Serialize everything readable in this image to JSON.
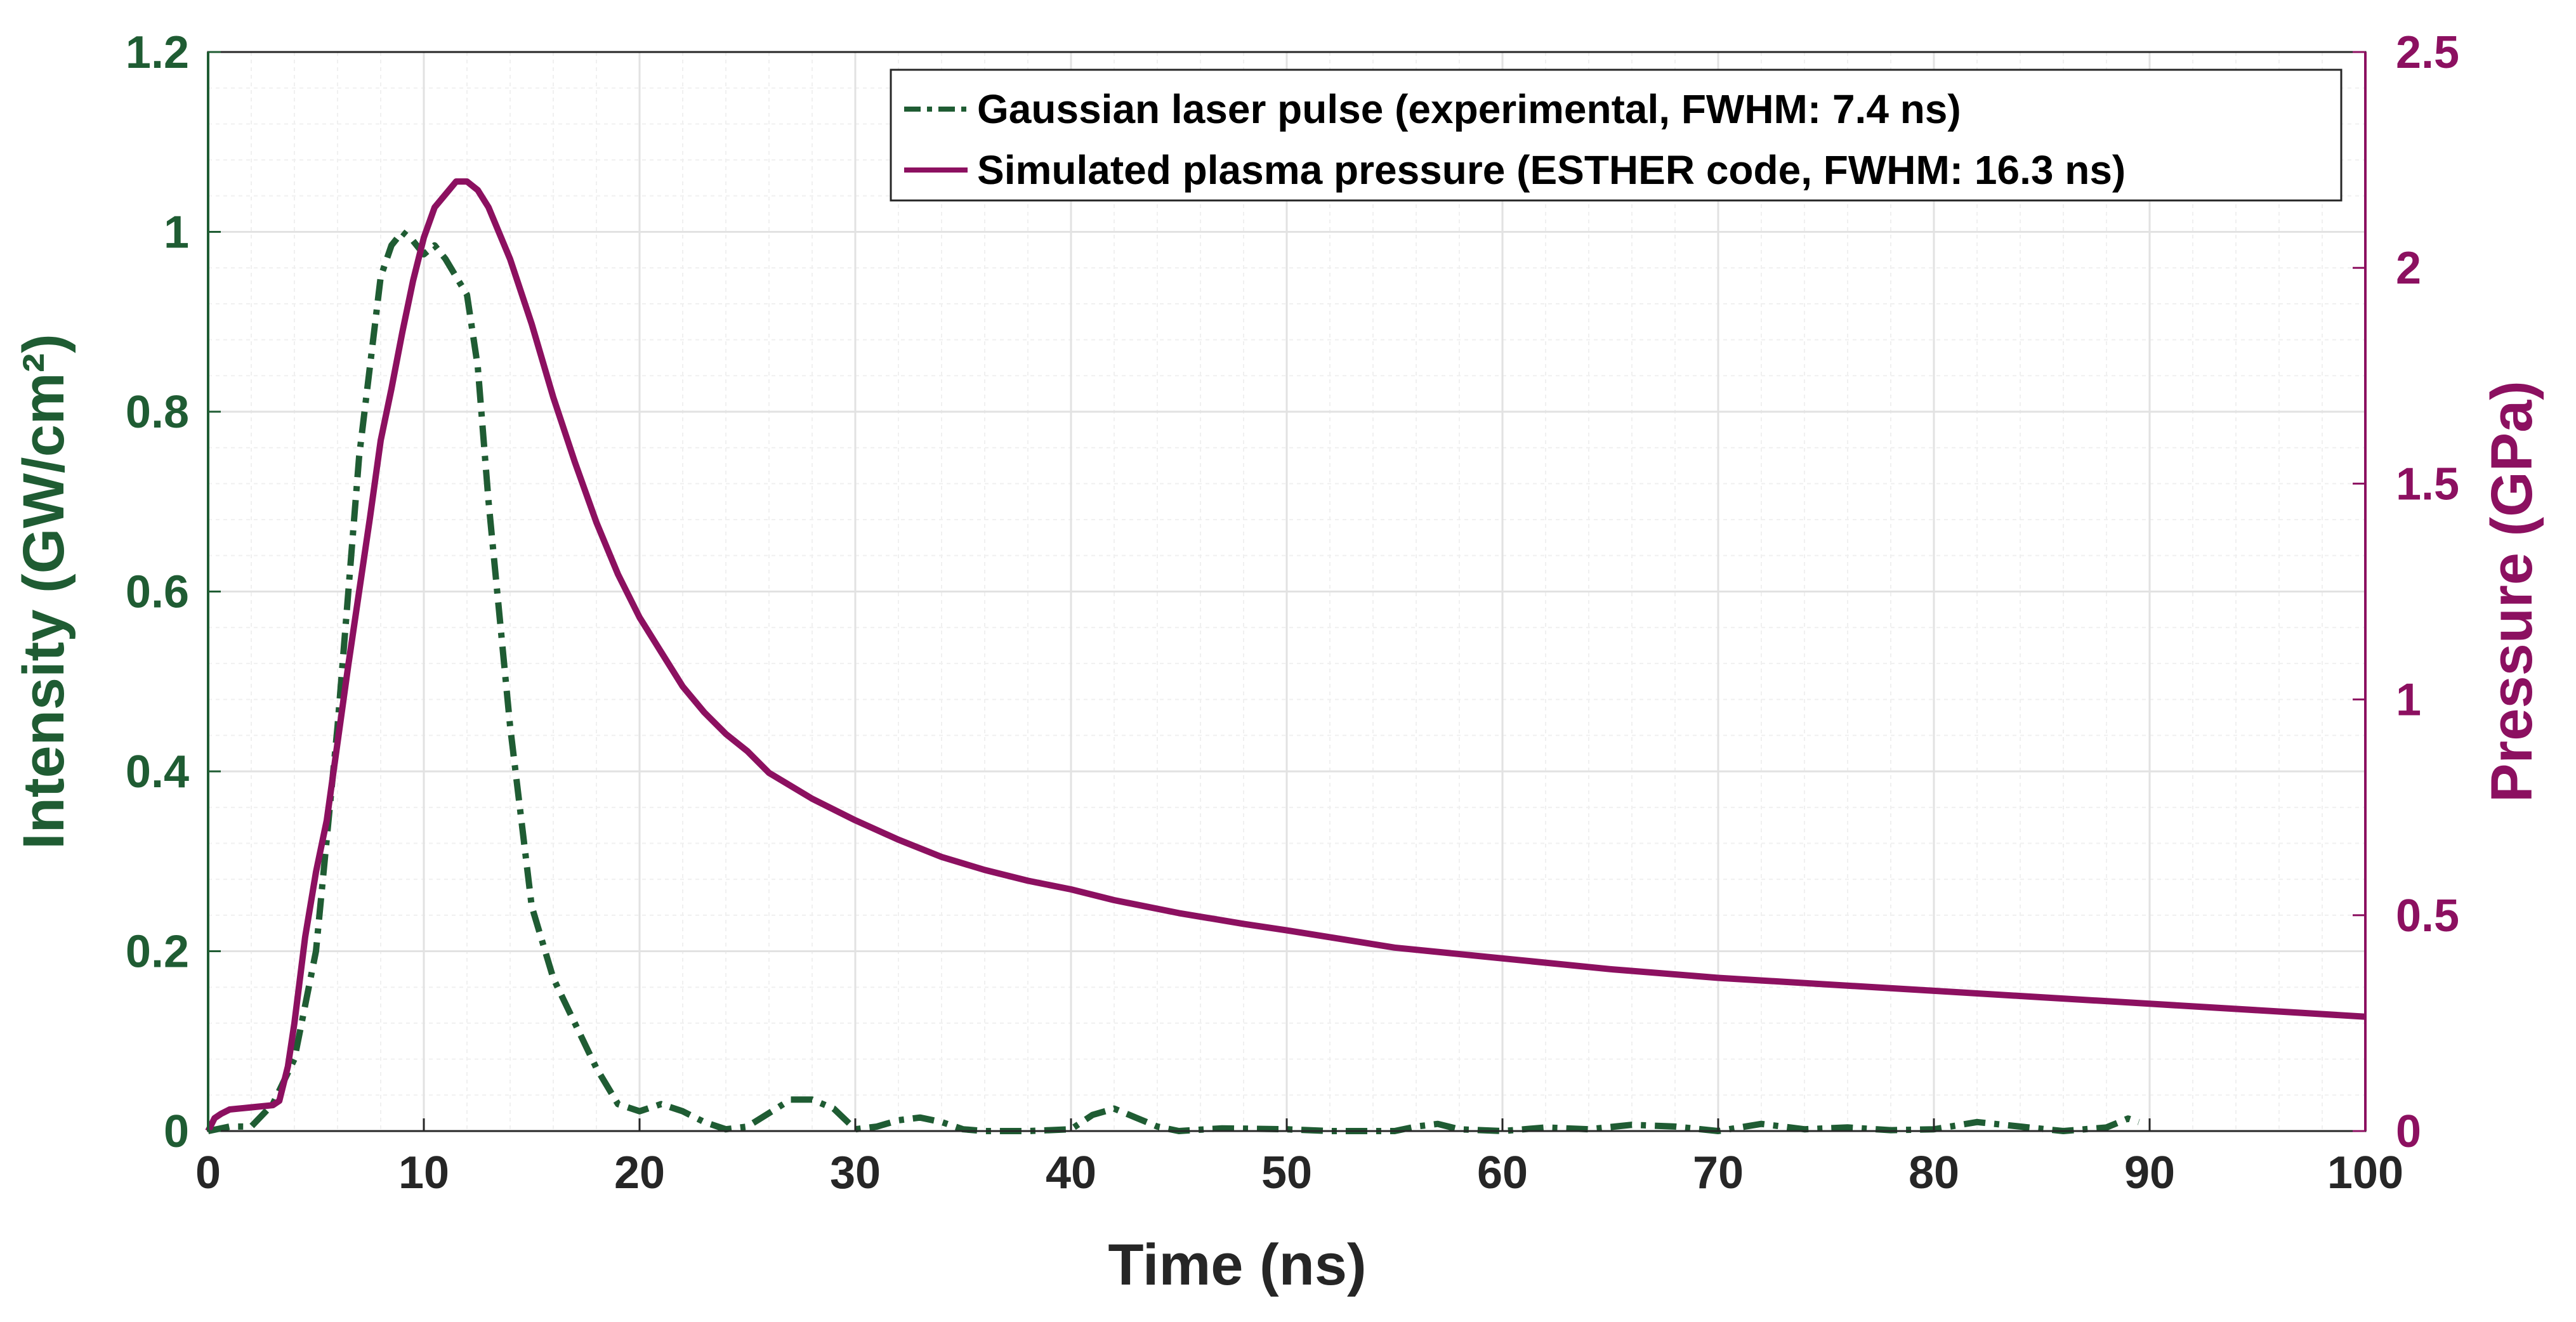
{
  "chart_data": {
    "type": "line",
    "title": "",
    "xlabel": "Time (ns)",
    "ylabel_left": "Intensity (GW/cm²)",
    "ylabel_right": "Pressure (GPa)",
    "xlim": [
      0,
      100
    ],
    "ylim_left": [
      0,
      1.2
    ],
    "ylim_right": [
      0,
      2.5
    ],
    "x_ticks": [
      "0",
      "10",
      "20",
      "30",
      "40",
      "50",
      "60",
      "70",
      "80",
      "90",
      "100"
    ],
    "y_left_ticks": [
      "0",
      "0.2",
      "0.4",
      "0.6",
      "0.8",
      "1",
      "1.2"
    ],
    "y_right_ticks": [
      "0",
      "0.5",
      "1",
      "1.5",
      "2",
      "2.5"
    ],
    "grid": true,
    "minor_grid": true,
    "legend_position": "top-right",
    "colors": {
      "intensity": "#1f5c33",
      "pressure": "#8c1060",
      "grid": "#e2e2e2",
      "minor_grid": "#f0f0f0"
    },
    "series": [
      {
        "name": "Gaussian laser pulse (experimental, FWHM: 7.4 ns)",
        "axis": "left",
        "style": "dash-dot",
        "x": [
          0,
          1,
          2,
          3,
          4,
          5,
          6,
          7,
          8,
          8.5,
          9,
          9.5,
          10,
          10.5,
          11,
          11.5,
          12,
          12.5,
          13,
          14,
          15,
          16,
          17,
          18,
          19,
          20,
          21,
          22,
          23,
          24,
          25,
          26,
          27,
          28,
          29,
          30,
          31,
          32,
          33,
          34,
          35,
          36,
          38,
          40,
          41,
          42,
          43,
          44,
          45,
          47,
          50,
          52,
          55,
          56,
          57,
          58,
          60,
          62,
          64,
          66,
          68,
          70,
          72,
          74,
          76,
          78,
          80,
          82,
          84,
          86,
          88,
          89,
          89.5
        ],
        "values": [
          0,
          0.005,
          0.005,
          0.03,
          0.08,
          0.2,
          0.45,
          0.75,
          0.95,
          0.985,
          1.0,
          0.99,
          0.975,
          0.985,
          0.97,
          0.95,
          0.93,
          0.85,
          0.7,
          0.45,
          0.25,
          0.17,
          0.12,
          0.07,
          0.03,
          0.022,
          0.03,
          0.022,
          0.01,
          0.002,
          0.005,
          0.02,
          0.035,
          0.035,
          0.025,
          0.002,
          0.005,
          0.012,
          0.015,
          0.01,
          0.002,
          0.0,
          0.0,
          0.002,
          0.018,
          0.025,
          0.015,
          0.005,
          0.0,
          0.003,
          0.002,
          0.0,
          0.0,
          0.005,
          0.008,
          0.002,
          0.0,
          0.004,
          0.002,
          0.007,
          0.005,
          0.0,
          0.008,
          0.002,
          0.004,
          0.001,
          0.002,
          0.01,
          0.005,
          0.0,
          0.004,
          0.014,
          0.01
        ]
      },
      {
        "name": "Simulated plasma pressure (ESTHER code, FWHM: 16.3 ns)",
        "axis": "right",
        "style": "solid",
        "x": [
          0,
          0.3,
          0.6,
          1,
          2,
          3,
          3.3,
          3.7,
          4,
          4.5,
          5,
          5.5,
          6,
          6.5,
          7,
          7.5,
          8,
          8.5,
          9,
          9.5,
          10,
          10.5,
          11,
          11.5,
          12,
          12.5,
          13,
          14,
          15,
          16,
          17,
          18,
          19,
          20,
          21,
          22,
          23,
          24,
          25,
          26,
          27,
          28,
          29,
          30,
          32,
          34,
          36,
          38,
          40,
          42,
          45,
          48,
          50,
          55,
          60,
          65,
          70,
          75,
          80,
          85,
          90,
          95,
          100
        ],
        "values": [
          0.0,
          0.03,
          0.04,
          0.05,
          0.055,
          0.06,
          0.07,
          0.15,
          0.25,
          0.45,
          0.6,
          0.72,
          0.9,
          1.08,
          1.25,
          1.42,
          1.6,
          1.72,
          1.85,
          1.97,
          2.07,
          2.14,
          2.17,
          2.2,
          2.2,
          2.18,
          2.14,
          2.02,
          1.87,
          1.7,
          1.55,
          1.41,
          1.29,
          1.19,
          1.11,
          1.03,
          0.97,
          0.92,
          0.88,
          0.83,
          0.8,
          0.77,
          0.745,
          0.72,
          0.675,
          0.635,
          0.605,
          0.58,
          0.56,
          0.535,
          0.505,
          0.48,
          0.465,
          0.425,
          0.4,
          0.375,
          0.355,
          0.34,
          0.325,
          0.31,
          0.295,
          0.28,
          0.265
        ]
      }
    ]
  }
}
